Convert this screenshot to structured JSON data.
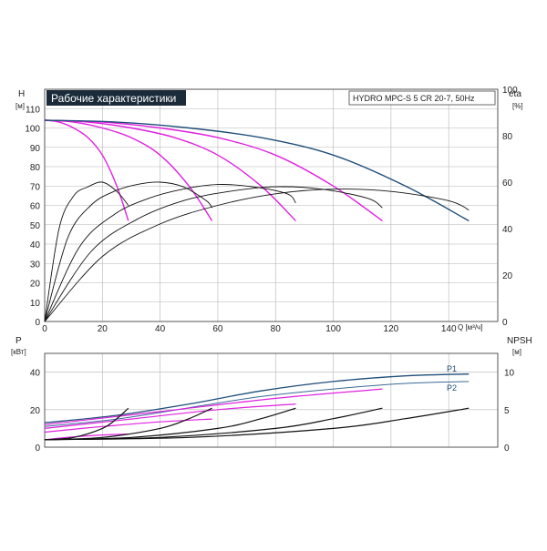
{
  "chart_data": [
    {
      "type": "line",
      "title": "Рабочие характеристики",
      "subtitle": "HYDRO MPC-S 5 CR 20-7, 50Hz",
      "xlabel": "Q [м³/ч]",
      "ylabel": "H",
      "ylabel_unit": "[м]",
      "y2label": "eta",
      "y2label_unit": "[%]",
      "xlim": [
        0,
        157
      ],
      "ylim": [
        0,
        120
      ],
      "y2lim": [
        0,
        100
      ],
      "x_ticks": [
        "0",
        "20",
        "40",
        "60",
        "80",
        "100",
        "120",
        "140"
      ],
      "y_ticks": [
        "0",
        "10",
        "20",
        "30",
        "40",
        "50",
        "60",
        "70",
        "80",
        "90",
        "100",
        "110"
      ],
      "y2_ticks": [
        "0",
        "20",
        "40",
        "60",
        "80",
        "100"
      ],
      "grid": true,
      "colors": {
        "system": "#1f4e79",
        "pump": "#e020e0",
        "eta": "#111111",
        "grid": "#b5b5b5"
      },
      "series": [
        {
          "kind": "head_pump",
          "x": [
            0,
            5,
            10,
            15,
            20,
            25,
            29
          ],
          "y": [
            104,
            103,
            100,
            95,
            86,
            70,
            52
          ]
        },
        {
          "kind": "head_pump",
          "x": [
            0,
            10,
            20,
            30,
            40,
            50,
            58
          ],
          "y": [
            104,
            103,
            100,
            95,
            86,
            70,
            52
          ]
        },
        {
          "kind": "head_pump",
          "x": [
            0,
            15,
            30,
            45,
            60,
            75,
            87
          ],
          "y": [
            104,
            103,
            100,
            95,
            86,
            70,
            52
          ]
        },
        {
          "kind": "head_pump",
          "x": [
            0,
            20,
            40,
            60,
            80,
            100,
            117
          ],
          "y": [
            104,
            103,
            100,
            95,
            86,
            70,
            52
          ]
        },
        {
          "kind": "head_system",
          "x": [
            0,
            25,
            50,
            75,
            100,
            125,
            147
          ],
          "y": [
            104,
            103,
            100,
            95,
            86,
            70,
            52
          ]
        },
        {
          "kind": "eta",
          "x": [
            0,
            5,
            10,
            15,
            20,
            25,
            29
          ],
          "y": [
            0,
            40,
            54,
            58,
            60,
            56,
            50
          ]
        },
        {
          "kind": "eta",
          "x": [
            0,
            8,
            16,
            24,
            32,
            40,
            48,
            56,
            58
          ],
          "y": [
            0,
            36,
            50,
            56,
            59,
            60,
            58,
            52,
            49
          ]
        },
        {
          "kind": "eta",
          "x": [
            0,
            12,
            24,
            36,
            48,
            60,
            72,
            84,
            87
          ],
          "y": [
            0,
            32,
            46,
            53,
            57,
            59,
            58,
            55,
            51
          ]
        },
        {
          "kind": "eta",
          "x": [
            0,
            16,
            32,
            48,
            64,
            80,
            96,
            112,
            117
          ],
          "y": [
            0,
            30,
            44,
            52,
            56,
            58,
            57,
            53,
            49
          ]
        },
        {
          "kind": "eta",
          "x": [
            0,
            20,
            40,
            60,
            80,
            100,
            120,
            140,
            147
          ],
          "y": [
            0,
            28,
            42,
            50,
            55,
            57,
            56,
            52,
            48
          ]
        }
      ]
    },
    {
      "type": "line",
      "ylabel": "P",
      "ylabel_unit": "[кВт]",
      "y2label": "NPSH",
      "y2label_unit": "[м]",
      "xlim": [
        0,
        157
      ],
      "ylim": [
        0,
        50
      ],
      "y2lim": [
        0,
        12.5
      ],
      "y_ticks": [
        "0",
        "20",
        "40"
      ],
      "y2_ticks": [
        "0",
        "5",
        "10"
      ],
      "grid": true,
      "labels": {
        "p1": "P1",
        "p2": "P2"
      },
      "series": [
        {
          "kind": "power_p1",
          "x": [
            0,
            25,
            50,
            75,
            100,
            125,
            147
          ],
          "y": [
            13,
            17,
            23,
            30,
            35,
            38,
            39
          ]
        },
        {
          "kind": "power_p2",
          "x": [
            0,
            25,
            50,
            75,
            100,
            125,
            147
          ],
          "y": [
            11,
            15,
            21,
            27,
            31,
            34,
            35
          ]
        },
        {
          "kind": "power_pump",
          "x": [
            0,
            10,
            20,
            29
          ],
          "y": [
            4,
            5.5,
            6.5,
            7
          ]
        },
        {
          "kind": "power_pump",
          "x": [
            0,
            20,
            40,
            58
          ],
          "y": [
            8,
            11,
            13.5,
            15
          ]
        },
        {
          "kind": "power_pump",
          "x": [
            0,
            30,
            60,
            87
          ],
          "y": [
            10,
            15,
            20,
            23
          ]
        },
        {
          "kind": "power_pump",
          "x": [
            0,
            40,
            80,
            117
          ],
          "y": [
            12,
            19,
            26,
            31
          ]
        },
        {
          "kind": "npsh",
          "x": [
            0,
            10,
            20,
            25,
            29
          ],
          "y": [
            1,
            1.3,
            2.5,
            3.8,
            5.2
          ]
        },
        {
          "kind": "npsh",
          "x": [
            0,
            20,
            40,
            50,
            58
          ],
          "y": [
            1,
            1.3,
            2.5,
            3.8,
            5.2
          ]
        },
        {
          "kind": "npsh",
          "x": [
            0,
            30,
            60,
            75,
            87
          ],
          "y": [
            1,
            1.3,
            2.5,
            3.8,
            5.2
          ]
        },
        {
          "kind": "npsh",
          "x": [
            0,
            40,
            80,
            100,
            117
          ],
          "y": [
            1,
            1.3,
            2.5,
            3.8,
            5.2
          ]
        },
        {
          "kind": "npsh",
          "x": [
            0,
            50,
            100,
            125,
            147
          ],
          "y": [
            1,
            1.3,
            2.5,
            3.8,
            5.2
          ]
        }
      ]
    }
  ]
}
